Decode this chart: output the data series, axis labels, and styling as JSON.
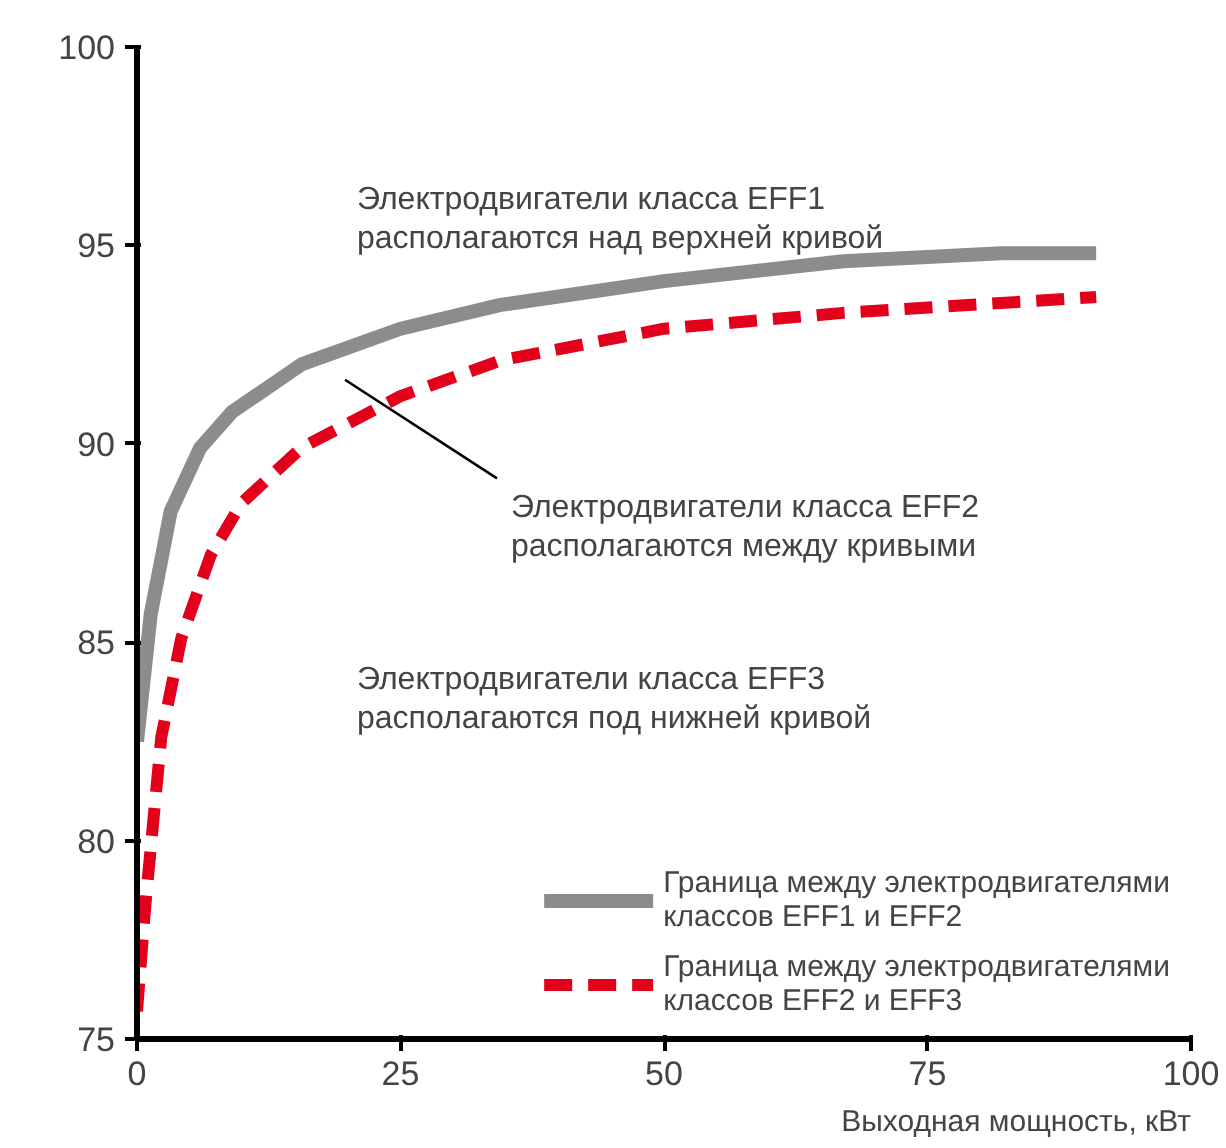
{
  "chart_data": {
    "type": "line",
    "xlabel": "Выходная мощность, кВт",
    "series": [
      {
        "name": "Граница между электродвигателями\nклассов EFF1 и EFF2",
        "color": "#8c8c8c",
        "line_style": "solid",
        "x": [
          0,
          1.3,
          3.2,
          6,
          9,
          15.6,
          25,
          34.5,
          50,
          67,
          82,
          91
        ],
        "values": [
          82.5,
          85.7,
          88.3,
          89.9,
          90.8,
          92.0,
          92.9,
          93.5,
          94.1,
          94.6,
          94.8,
          94.8
        ]
      },
      {
        "name": "Граница между электродвигателями\nклассов EFF2 и EFF3",
        "color": "#e3001b",
        "line_style": "dashed",
        "x": [
          0,
          0.8,
          2.3,
          4.2,
          7,
          9.9,
          15.6,
          25,
          34.5,
          50,
          67,
          91
        ],
        "values": [
          75.7,
          78.4,
          82.6,
          85.1,
          87.2,
          88.5,
          89.9,
          91.2,
          92.1,
          92.9,
          93.3,
          93.7
        ]
      }
    ],
    "xlim": [
      0,
      100
    ],
    "xticks": [
      0,
      25,
      50,
      75,
      100
    ],
    "ylim": [
      75,
      100
    ],
    "yticks": [
      75,
      80,
      85,
      90,
      95,
      100
    ],
    "grid": false,
    "legend": "bottom right",
    "marker": "none",
    "annotations": [
      "Электродвигатели класса EFF1\nрасполагаются над верхней кривой",
      "Электродвигатели класса EFF2\nрасполагаются между кривыми",
      "Электродвигатели класса EFF3\nрасполагаются под нижней кривой"
    ]
  }
}
